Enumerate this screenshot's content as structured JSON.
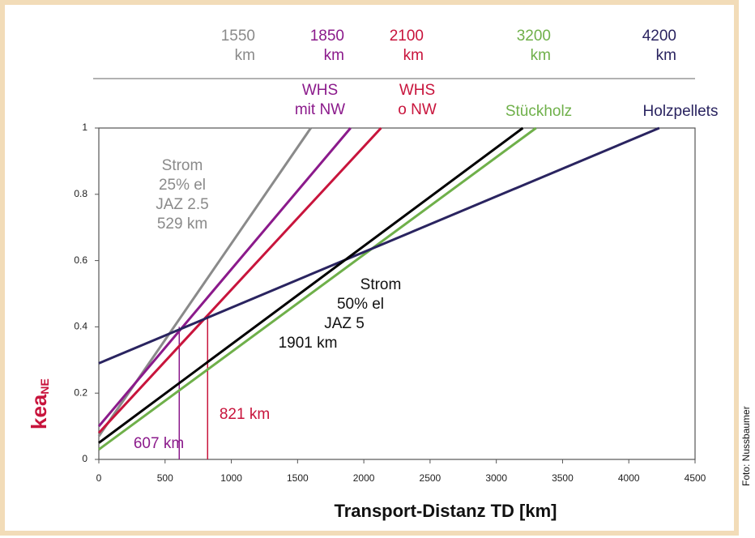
{
  "chart_data": {
    "type": "line",
    "xlabel": "Transport-Distanz TD [km]",
    "ylabel": "kea",
    "ylabel_sub": "NE",
    "credit": "Foto: Nussbaumer",
    "xlim": [
      0,
      4500
    ],
    "ylim": [
      0,
      1
    ],
    "xticks": [
      0,
      500,
      1000,
      1500,
      2000,
      2500,
      3000,
      3500,
      4000,
      4500
    ],
    "yticks": [
      0,
      0.2,
      0.4,
      0.6,
      0.8,
      1
    ],
    "series": [
      {
        "name": [
          "Strom",
          "25% el",
          "JAZ 2.5",
          "529 km"
        ],
        "color": "#8a8a8a",
        "x": [
          0,
          1600
        ],
        "values": [
          0.07,
          1
        ]
      },
      {
        "name": [
          "WHS",
          "mit NW"
        ],
        "color": "#8b1a8b",
        "x": [
          0,
          1900
        ],
        "values": [
          0.1,
          1
        ]
      },
      {
        "name": [
          "WHS",
          "o NW"
        ],
        "color": "#c8143c",
        "x": [
          0,
          2130
        ],
        "values": [
          0.08,
          1
        ]
      },
      {
        "name": [
          "Stückholz"
        ],
        "color": "#6fb04a",
        "x": [
          0,
          3300
        ],
        "values": [
          0.03,
          1
        ]
      },
      {
        "name": [
          "Holzpellets"
        ],
        "color": "#2a2460",
        "x": [
          0,
          4230
        ],
        "values": [
          0.29,
          1
        ]
      },
      {
        "name": [
          "Strom",
          "50% el",
          "JAZ 5",
          "1901 km"
        ],
        "color": "#000000",
        "x": [
          0,
          3200
        ],
        "values": [
          0.05,
          1
        ]
      }
    ],
    "markers": [
      {
        "label": "607 km",
        "color": "#8b1a8b",
        "x": 607,
        "y": 0.4
      },
      {
        "label": "821 km",
        "color": "#c8143c",
        "x": 821,
        "y": 0.43
      }
    ],
    "top_labels": [
      {
        "lines": [
          "1550",
          "km"
        ],
        "color": "#8a8a8a"
      },
      {
        "lines": [
          "1850",
          "km"
        ],
        "color": "#8b1a8b"
      },
      {
        "lines": [
          "2100",
          "km"
        ],
        "color": "#c8143c"
      },
      {
        "lines": [
          "3200",
          "km"
        ],
        "color": "#6fb04a"
      },
      {
        "lines": [
          "4200",
          "km"
        ],
        "color": "#2a2460"
      }
    ]
  }
}
